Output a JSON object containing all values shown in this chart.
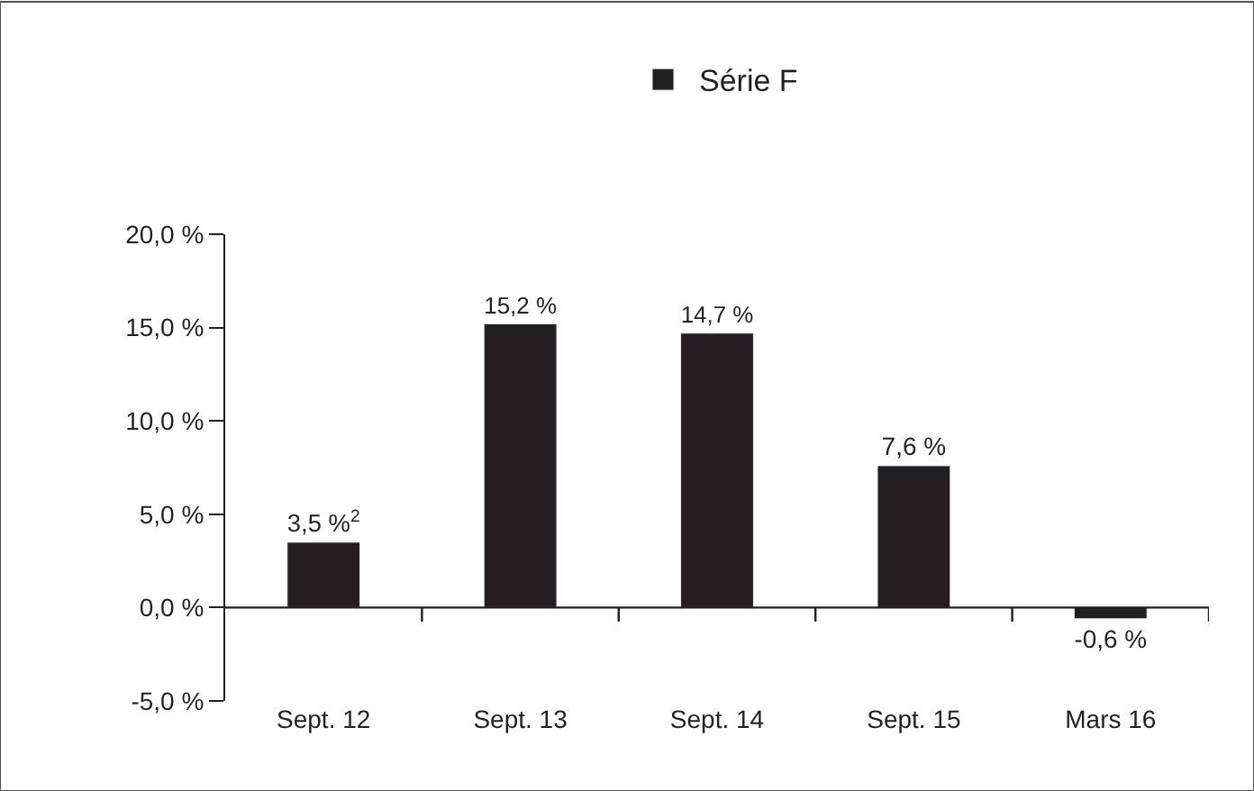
{
  "chart_data": {
    "type": "bar",
    "categories": [
      "Sept. 12",
      "Sept. 13",
      "Sept. 14",
      "Sept. 15",
      "Mars 16"
    ],
    "series": [
      {
        "name": "Série F",
        "color": "#231f20",
        "values": [
          3.5,
          15.2,
          14.7,
          7.6,
          -0.6
        ]
      }
    ],
    "value_labels": [
      "3,5 %$^{2}$",
      "15,2 %",
      "14,7 %",
      "7,6 %",
      "-0,6 %"
    ],
    "ylim": [
      -5,
      20
    ],
    "yticks": [
      {
        "value": -5,
        "label": "-5,0 %"
      },
      {
        "value": 0,
        "label": "0,0 %"
      },
      {
        "value": 5,
        "label": "5,0 %"
      },
      {
        "value": 10,
        "label": "10,0 %"
      },
      {
        "value": 15,
        "label": "15,0 %"
      },
      {
        "value": 20,
        "label": "20,0 %"
      }
    ],
    "legend": "top"
  }
}
